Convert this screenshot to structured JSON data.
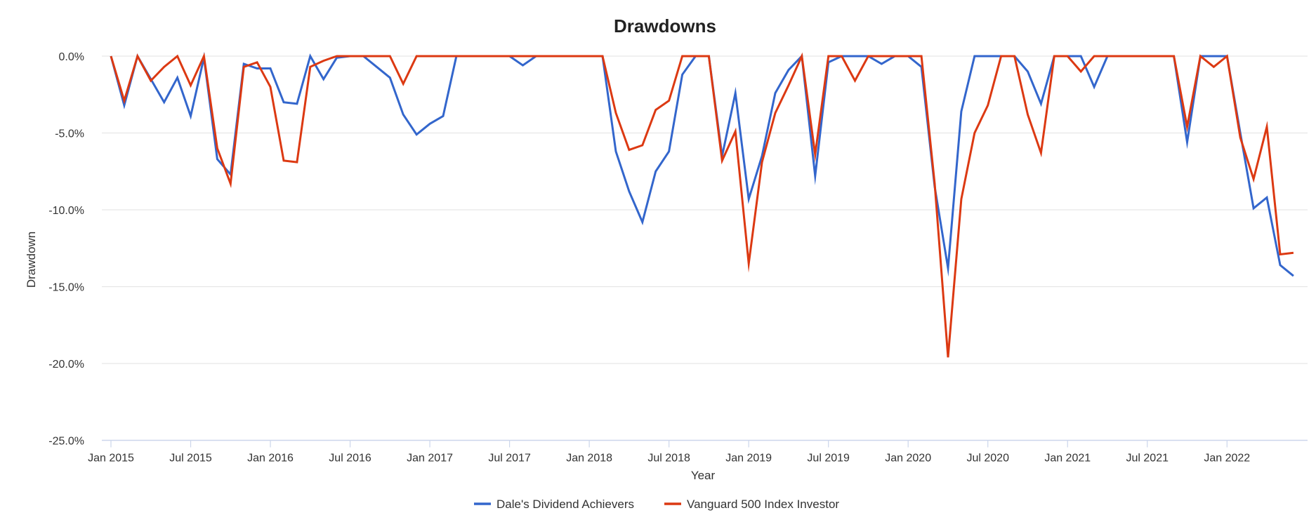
{
  "chart_data": {
    "type": "line",
    "title": "Drawdowns",
    "xlabel": "Year",
    "ylabel": "Drawdown",
    "ylim": [
      -25,
      0
    ],
    "yticks": [
      "0.0%",
      "-5.0%",
      "-10.0%",
      "-15.0%",
      "-20.0%",
      "-25.0%"
    ],
    "ytick_values": [
      0,
      -5,
      -10,
      -15,
      -20,
      -25
    ],
    "xticks": [
      "Jan 2015",
      "Jul 2015",
      "Jan 2016",
      "Jul 2016",
      "Jan 2017",
      "Jul 2017",
      "Jan 2018",
      "Jul 2018",
      "Jan 2019",
      "Jul 2019",
      "Jan 2020",
      "Jul 2020",
      "Jan 2021",
      "Jul 2021",
      "Jan 2022"
    ],
    "grid": true,
    "legend_position": "bottom",
    "x_start": "Jan 2015",
    "x_end": "Jun 2022",
    "x_frequency": "monthly",
    "series": [
      {
        "name": "Dale's Dividend Achievers",
        "color": "#3366cc",
        "values": [
          0,
          -3.2,
          0,
          -1.5,
          -3.0,
          -1.4,
          -3.9,
          -0.1,
          -6.7,
          -7.7,
          -0.5,
          -0.8,
          -0.8,
          -3.0,
          -3.1,
          0,
          -1.5,
          -0.1,
          0,
          0,
          -0.7,
          -1.4,
          -3.8,
          -5.1,
          -4.4,
          -3.9,
          0,
          0,
          0,
          0,
          0,
          -0.6,
          0,
          0,
          0,
          0,
          0,
          0,
          -6.2,
          -8.8,
          -10.8,
          -7.5,
          -6.2,
          -1.2,
          0,
          0,
          -6.5,
          -2.4,
          -9.3,
          -6.5,
          -2.4,
          -0.9,
          0,
          -7.8,
          -0.4,
          0,
          0,
          0,
          -0.5,
          0,
          0,
          -0.7,
          -8.5,
          -13.8,
          -3.6,
          0,
          0,
          0,
          0,
          -1.0,
          -3.1,
          0,
          0,
          0,
          -2.0,
          0,
          0,
          0,
          0,
          0,
          0,
          -5.6,
          0,
          0,
          0,
          -5.0,
          -9.9,
          -9.2,
          -13.6,
          -14.3
        ]
      },
      {
        "name": "Vanguard 500 Index Investor",
        "color": "#dc3912",
        "values": [
          0,
          -2.9,
          0,
          -1.6,
          -0.7,
          0,
          -1.9,
          0,
          -6.0,
          -8.3,
          -0.7,
          -0.4,
          -2.0,
          -6.8,
          -6.9,
          -0.7,
          -0.3,
          0,
          0,
          0,
          0,
          0,
          -1.8,
          0,
          0,
          0,
          0,
          0,
          0,
          0,
          0,
          0,
          0,
          0,
          0,
          0,
          0,
          0,
          -3.7,
          -6.1,
          -5.8,
          -3.5,
          -2.9,
          0,
          0,
          0,
          -6.8,
          -4.9,
          -13.5,
          -6.9,
          -3.7,
          -1.9,
          0,
          -6.4,
          0,
          0,
          -1.6,
          0,
          0,
          0,
          0,
          0,
          -8.3,
          -19.6,
          -9.3,
          -5.0,
          -3.2,
          0,
          0,
          -3.8,
          -6.3,
          0,
          0,
          -1.0,
          0,
          0,
          0,
          0,
          0,
          0,
          0,
          -4.6,
          0,
          -0.7,
          0,
          -5.3,
          -8.0,
          -4.6,
          -12.9,
          -12.8
        ]
      }
    ]
  }
}
